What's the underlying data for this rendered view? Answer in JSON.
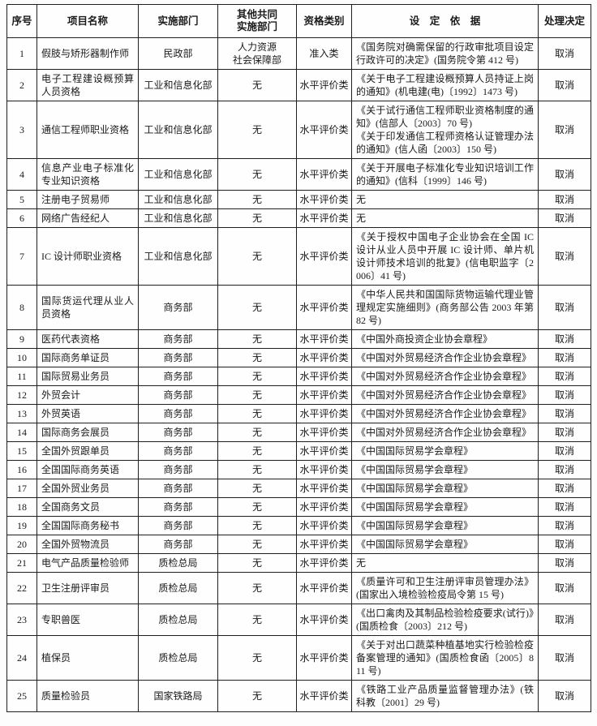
{
  "colors": {
    "text": "#1a1a1a",
    "border": "#1f1f1f",
    "background": "#fdfdfd"
  },
  "table": {
    "headers": [
      "序号",
      "项目名称",
      "实施部门",
      "其他共同\n实施部门",
      "资格类别",
      "设　定　依　据",
      "处理决定"
    ],
    "rows": [
      {
        "no": "1",
        "name": "假肢与矫形器制作师",
        "dept": "民政部",
        "co_dept": "人力资源\n社会保障部",
        "category": "准入类",
        "basis": "《国务院对确需保留的行政审批项目设定行政许可的决定》(国务院令第 412 号)",
        "decision": "取消"
      },
      {
        "no": "2",
        "name": "电子工程建设概预算人员资格",
        "dept": "工业和信息化部",
        "co_dept": "无",
        "category": "水平评价类",
        "basis": "《关于电子工程建设概预算人员持证上岗的通知》(机电建(电)〔1992〕1473 号)",
        "decision": "取消"
      },
      {
        "no": "3",
        "name": "通信工程师职业资格",
        "dept": "工业和信息化部",
        "co_dept": "无",
        "category": "水平评价类",
        "basis": "《关于试行通信工程师职业资格制度的通知》(信部人〔2003〕70 号)\n《关于印发通信工程师资格认证管理办法的通知》(信人函〔2003〕150 号)",
        "decision": "取消"
      },
      {
        "no": "4",
        "name": "信息产业电子标准化专业知识资格",
        "dept": "工业和信息化部",
        "co_dept": "无",
        "category": "水平评价类",
        "basis": "《关于开展电子标准化专业知识培训工作的通知》(信科〔1999〕146 号)",
        "decision": "取消"
      },
      {
        "no": "5",
        "name": "注册电子贸易师",
        "dept": "工业和信息化部",
        "co_dept": "无",
        "category": "水平评价类",
        "basis": "无",
        "decision": "取消"
      },
      {
        "no": "6",
        "name": "网络广告经纪人",
        "dept": "工业和信息化部",
        "co_dept": "无",
        "category": "水平评价类",
        "basis": "无",
        "decision": "取消"
      },
      {
        "no": "7",
        "name": "IC 设计师职业资格",
        "dept": "工业和信息化部",
        "co_dept": "无",
        "category": "水平评价类",
        "basis": "《关于授权中国电子企业协会在全国 IC 设计从业人员中开展 IC 设计师、单片机设计师技术培训的批复》(信电职监字〔2006〕41 号)",
        "decision": "取消"
      },
      {
        "no": "8",
        "name": "国际货运代理从业人员资格",
        "dept": "商务部",
        "co_dept": "无",
        "category": "水平评价类",
        "basis": "《中华人民共和国国际货物运输代理业管理规定实施细则》(商务部公告 2003 年第 82 号)",
        "decision": "取消"
      },
      {
        "no": "9",
        "name": "医药代表资格",
        "dept": "商务部",
        "co_dept": "无",
        "category": "水平评价类",
        "basis": "《中国外商投资企业协会章程》",
        "decision": "取消"
      },
      {
        "no": "10",
        "name": "国际商务单证员",
        "dept": "商务部",
        "co_dept": "无",
        "category": "水平评价类",
        "basis": "《中国对外贸易经济合作企业协会章程》",
        "decision": "取消"
      },
      {
        "no": "11",
        "name": "国际贸易业务员",
        "dept": "商务部",
        "co_dept": "无",
        "category": "水平评价类",
        "basis": "《中国对外贸易经济合作企业协会章程》",
        "decision": "取消"
      },
      {
        "no": "12",
        "name": "外贸会计",
        "dept": "商务部",
        "co_dept": "无",
        "category": "水平评价类",
        "basis": "《中国对外贸易经济合作企业协会章程》",
        "decision": "取消"
      },
      {
        "no": "13",
        "name": "外贸英语",
        "dept": "商务部",
        "co_dept": "无",
        "category": "水平评价类",
        "basis": "《中国对外贸易经济合作企业协会章程》",
        "decision": "取消"
      },
      {
        "no": "14",
        "name": "国际商务会展员",
        "dept": "商务部",
        "co_dept": "无",
        "category": "水平评价类",
        "basis": "《中国对外贸易经济合作企业协会章程》",
        "decision": "取消"
      },
      {
        "no": "15",
        "name": "全国外贸跟单员",
        "dept": "商务部",
        "co_dept": "无",
        "category": "水平评价类",
        "basis": "《中国国际贸易学会章程》",
        "decision": "取消"
      },
      {
        "no": "16",
        "name": "全国国际商务英语",
        "dept": "商务部",
        "co_dept": "无",
        "category": "水平评价类",
        "basis": "《中国国际贸易学会章程》",
        "decision": "取消"
      },
      {
        "no": "17",
        "name": "全国外贸业务员",
        "dept": "商务部",
        "co_dept": "无",
        "category": "水平评价类",
        "basis": "《中国国际贸易学会章程》",
        "decision": "取消"
      },
      {
        "no": "18",
        "name": "全国商务文员",
        "dept": "商务部",
        "co_dept": "无",
        "category": "水平评价类",
        "basis": "《中国国际贸易学会章程》",
        "decision": "取消"
      },
      {
        "no": "19",
        "name": "全国国际商务秘书",
        "dept": "商务部",
        "co_dept": "无",
        "category": "水平评价类",
        "basis": "《中国国际贸易学会章程》",
        "decision": "取消"
      },
      {
        "no": "20",
        "name": "全国外贸物流员",
        "dept": "商务部",
        "co_dept": "无",
        "category": "水平评价类",
        "basis": "《中国国际贸易学会章程》",
        "decision": "取消"
      },
      {
        "no": "21",
        "name": "电气产品质量检验师",
        "dept": "质检总局",
        "co_dept": "无",
        "category": "水平评价类",
        "basis": "无",
        "decision": "取消"
      },
      {
        "no": "22",
        "name": "卫生注册评审员",
        "dept": "质检总局",
        "co_dept": "无",
        "category": "水平评价类",
        "basis": "《质量许可和卫生注册评审员管理办法》(国家出入境检验检疫局令第 15 号)",
        "decision": "取消"
      },
      {
        "no": "23",
        "name": "专职兽医",
        "dept": "质检总局",
        "co_dept": "无",
        "category": "水平评价类",
        "basis": "《出口禽肉及其制品检验检疫要求(试行)》(国质检食〔2003〕212 号)",
        "decision": "取消"
      },
      {
        "no": "24",
        "name": "植保员",
        "dept": "质检总局",
        "co_dept": "无",
        "category": "水平评价类",
        "basis": "《关于对出口蔬菜种植基地实行检验检疫备案管理的通知》(国质检食函〔2005〕811 号)",
        "decision": "取消"
      },
      {
        "no": "25",
        "name": "质量检验员",
        "dept": "国家铁路局",
        "co_dept": "无",
        "category": "水平评价类",
        "basis": "《铁路工业产品质量监督管理办法》(铁科教〔2001〕29 号)",
        "decision": "取消"
      }
    ]
  }
}
